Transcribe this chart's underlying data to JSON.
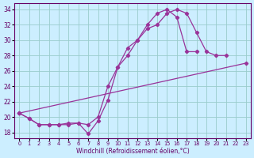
{
  "xlabel": "Windchill (Refroidissement éolien,°C)",
  "bg_color": "#cceeff",
  "grid_color": "#99cccc",
  "line_color": "#993399",
  "xlim": [
    -0.5,
    23.5
  ],
  "ylim": [
    17.2,
    34.8
  ],
  "yticks": [
    18,
    20,
    22,
    24,
    26,
    28,
    30,
    32,
    34
  ],
  "xticks": [
    0,
    1,
    2,
    3,
    4,
    5,
    6,
    7,
    8,
    9,
    10,
    11,
    12,
    13,
    14,
    15,
    16,
    17,
    18,
    19,
    20,
    21,
    22,
    23
  ],
  "line1_x": [
    0,
    1,
    2,
    3,
    4,
    5,
    6,
    7,
    8,
    9,
    10,
    11,
    12,
    13,
    14,
    15,
    16,
    17,
    18,
    19,
    20,
    21
  ],
  "line1_y": [
    20.5,
    19.8,
    19.0,
    19.0,
    19.0,
    19.0,
    19.2,
    17.8,
    19.5,
    22.2,
    26.5,
    28.0,
    30.0,
    31.5,
    32.0,
    33.5,
    34.0,
    33.5,
    31.0,
    28.5,
    28.0,
    28.0
  ],
  "line2_x": [
    0,
    1,
    2,
    3,
    4,
    5,
    6,
    7,
    8,
    9,
    10,
    11,
    12,
    13,
    14,
    15,
    16,
    17,
    18
  ],
  "line2_y": [
    20.5,
    19.8,
    19.0,
    19.0,
    19.0,
    19.2,
    19.2,
    19.0,
    20.0,
    24.0,
    26.5,
    29.0,
    30.0,
    32.0,
    33.5,
    34.0,
    33.0,
    28.5,
    28.5
  ],
  "line3_x": [
    0,
    23
  ],
  "line3_y": [
    20.5,
    27.0
  ]
}
